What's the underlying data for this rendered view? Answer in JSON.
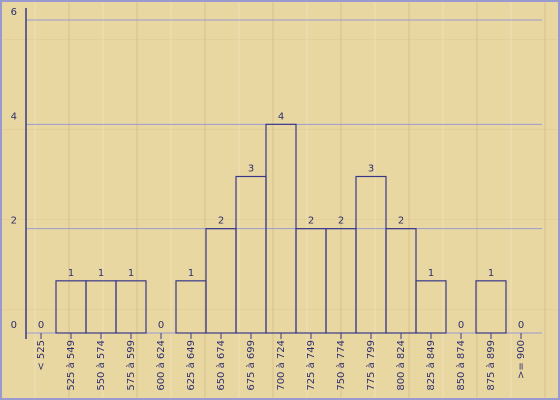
{
  "chart_data": {
    "type": "bar",
    "categories": [
      "< 525",
      "525 à 549",
      "550 à 574",
      "575 à 599",
      "600 à 624",
      "625 à 649",
      "650 à 674",
      "675 à 699",
      "700 à 724",
      "725 à 749",
      "750 à 774",
      "775 à 799",
      "800 à 824",
      "825 à 849",
      "850 à 874",
      "875 à 899",
      ">= 900"
    ],
    "values": [
      0,
      1,
      1,
      1,
      0,
      1,
      2,
      3,
      4,
      2,
      2,
      3,
      2,
      1,
      0,
      1,
      0
    ],
    "color": "#38388a",
    "ylim": [
      0,
      6
    ],
    "yticks": [
      0,
      2,
      4,
      6
    ],
    "grid": true
  }
}
